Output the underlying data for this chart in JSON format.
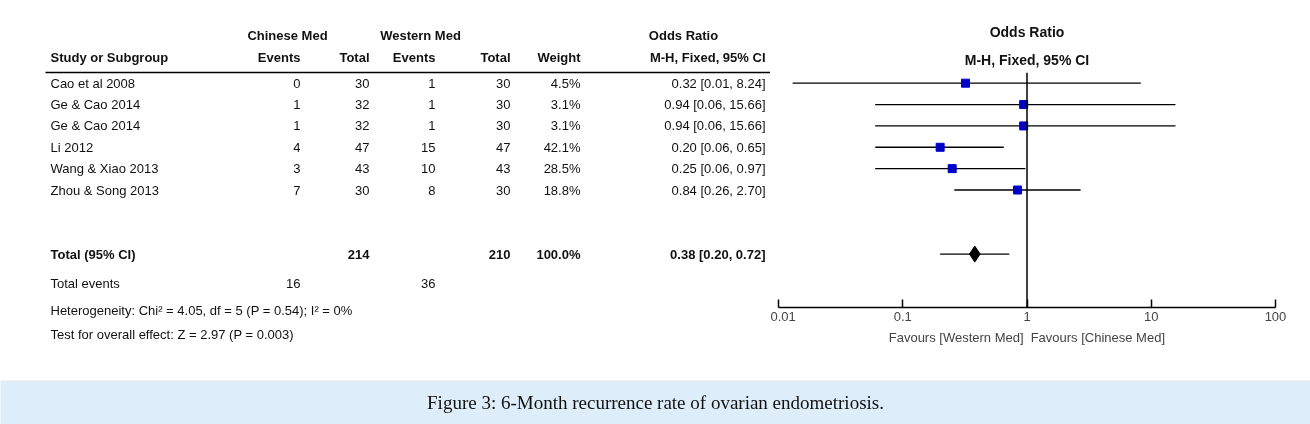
{
  "chart_data": [
    {
      "type": "other",
      "title": "Figure 3: 6-Month recurrence rate of ovarian endometriosis.",
      "categories": [
        "Study or Subgroup",
        "Events",
        "Total",
        "Events",
        "Total",
        "Weight",
        "M-H, Fixed, 95% CI"
      ],
      "y_categories": [
        "Cao et al 2008",
        "Ge & Cao 2014",
        "Ge & Cao 2014",
        "Li 2012",
        "Wang & Xiao 2013",
        "Zhou & Song 2013",
        null,
        null,
        "Total (95% CI)",
        "Total events"
      ],
      "cell_labels": [
        [
          "0",
          "30",
          "1",
          "30",
          "4.5%",
          "0.32 [0.01, 8.24]"
        ],
        [
          "1",
          "32",
          "1",
          "30",
          "3.1%",
          "0.94 [0.06, 15.66]"
        ],
        [
          "1",
          "32",
          "1",
          "30",
          "3.1%",
          "0.94 [0.06, 15.66]"
        ],
        [
          "4",
          "47",
          "15",
          "47",
          "42.1%",
          "0.20 [0.06, 0.65]"
        ],
        [
          "3",
          "43",
          "10",
          "43",
          "28.5%",
          "0.25 [0.06, 0.97]"
        ],
        [
          "7",
          "30",
          "8",
          "30",
          "18.8%",
          "0.84 [0.26, 2.70]"
        ],
        [
          null,
          null,
          null,
          null,
          null,
          null
        ],
        [
          null,
          null,
          null,
          null,
          null,
          null
        ],
        [
          null,
          "214",
          null,
          "210",
          "100.0%",
          "0.38 [0.20, 0.72]"
        ],
        [
          "16",
          null,
          "36",
          null,
          null,
          null
        ]
      ],
      "annotations": [
        "Chinese Med",
        "Western Med",
        "Odds Ratio",
        "Heterogeneity: Chi² = 4.05, df = 5 (P = 0.54); I² = 0%",
        "Test for overall effect: Z = 2.97 (P = 0.003)"
      ]
    },
    {
      "type": "scatter",
      "orientation": "horizontal",
      "title": "Odds Ratio",
      "subtitle": "M-H, Fixed, 95% CI",
      "categories": [
        null,
        null,
        null,
        null,
        null,
        null,
        null,
        null,
        null,
        null,
        null
      ],
      "log": "x",
      "xlim": [
        0.01,
        100
      ],
      "xticks": [
        0.01,
        0.1,
        1,
        10,
        100
      ],
      "grid": false,
      "tick_labels": "x",
      "series": [
        {
          "marker": "square",
          "color": "#0000c8",
          "values": [
            0.32,
            0.94,
            0.94,
            0.2,
            0.25,
            0.84,
            null,
            null,
            null,
            null,
            null
          ],
          "errors": [
            [
              0.013,
              8.24
            ],
            [
              0.06,
              15.66
            ],
            [
              0.06,
              15.66
            ],
            [
              0.06,
              0.65
            ],
            [
              0.06,
              0.97
            ],
            [
              0.26,
              2.7
            ],
            null,
            null,
            null,
            null,
            null
          ]
        },
        {
          "marker": "diamond",
          "color": "#000000",
          "values": [
            null,
            null,
            null,
            null,
            null,
            null,
            null,
            null,
            0.38,
            null,
            null
          ],
          "errors": [
            null,
            null,
            null,
            null,
            null,
            null,
            null,
            null,
            [
              0.2,
              0.72
            ],
            null,
            null
          ]
        }
      ],
      "ref_lines": [
        {
          "axis": "x",
          "value": 1,
          "color": "#000000"
        }
      ],
      "annotations": [
        "Favours [Western Med]",
        "Favours [Chinese Med]"
      ]
    }
  ]
}
